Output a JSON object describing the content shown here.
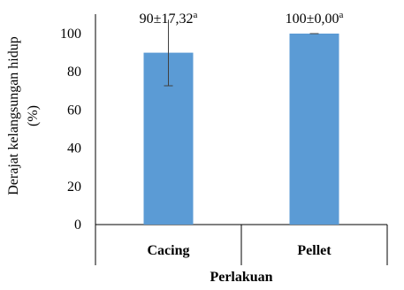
{
  "chart_data": {
    "type": "bar",
    "categories": [
      "Cacing",
      "Pellet"
    ],
    "values": [
      90,
      100
    ],
    "errors": [
      17.32,
      0.0
    ],
    "data_labels": [
      {
        "main": "90±17,32",
        "sup": "a"
      },
      {
        "main": "100±0,00",
        "sup": "a"
      }
    ],
    "xlabel": "Perlakuan",
    "ylabel": [
      "Derajat kelangsungan hidup",
      "(%)"
    ],
    "ylim": [
      0,
      100
    ],
    "yticks": [
      0,
      20,
      40,
      60,
      80,
      100
    ],
    "ytick_labels": [
      "0",
      "20",
      "40",
      "60",
      "80",
      "100"
    ],
    "grid": false,
    "legend": "none",
    "bar_color": "#5B9BD5",
    "error_bar_color": "#404040",
    "axis_color": "#000000"
  }
}
